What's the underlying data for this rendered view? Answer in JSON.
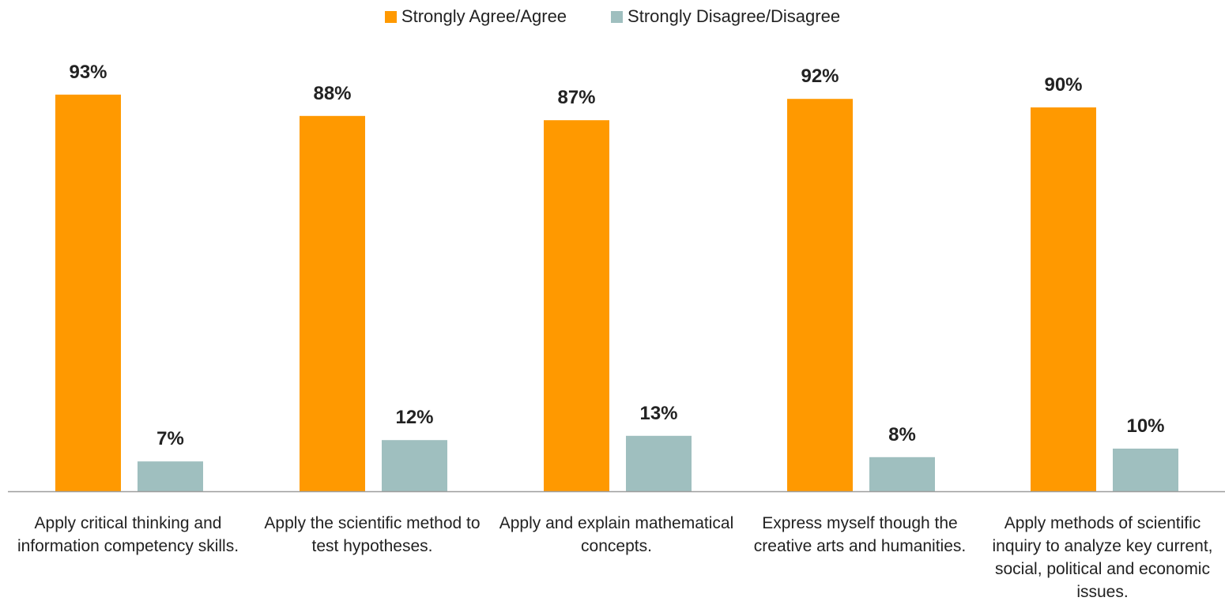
{
  "colors": {
    "agree": "#FF9900",
    "disagree": "#9FBFBF",
    "axis": "#9E9E9E"
  },
  "chart_data": {
    "type": "bar",
    "categories": [
      "Apply critical thinking and information competency skills.",
      "Apply the scientific method to test hypotheses.",
      "Apply and explain mathematical concepts.",
      "Express myself though the creative arts and humanities.",
      "Apply methods of scientific inquiry to analyze key current, social, political and economic issues."
    ],
    "series": [
      {
        "name": "Strongly Agree/Agree",
        "values": [
          93,
          88,
          87,
          92,
          90
        ],
        "labels": [
          "93%",
          "88%",
          "87%",
          "92%",
          "90%"
        ]
      },
      {
        "name": "Strongly Disagree/Disagree",
        "values": [
          7,
          12,
          13,
          8,
          10
        ],
        "labels": [
          "7%",
          "12%",
          "13%",
          "8%",
          "10%"
        ]
      }
    ],
    "ylim": [
      0,
      100
    ],
    "unit": "%",
    "legend_position": "top-center",
    "grid": false
  }
}
